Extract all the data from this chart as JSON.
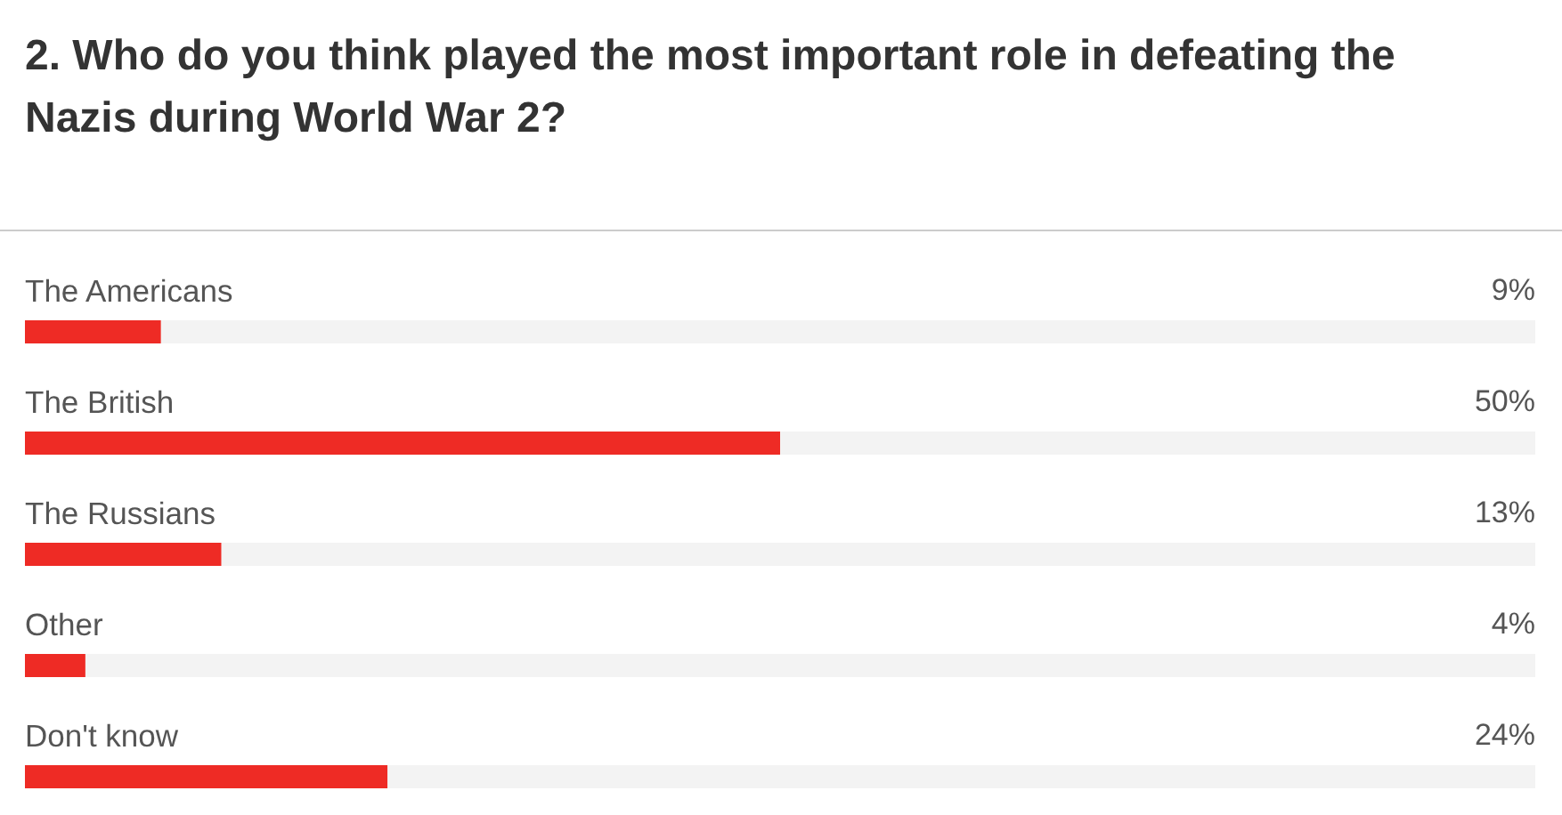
{
  "chart_data": {
    "type": "bar",
    "orientation": "horizontal",
    "title": "2. Who do you think played the most important role in defeating the Nazis during World War 2?",
    "categories": [
      "The Americans",
      "The British",
      "The Russians",
      "Other",
      "Don't know"
    ],
    "values": [
      9,
      50,
      13,
      4,
      24
    ],
    "value_labels": [
      "9%",
      "50%",
      "13%",
      "4%",
      "24%"
    ],
    "color": "#ee2b25",
    "xlim": [
      0,
      100
    ],
    "tick_labels": "y"
  }
}
